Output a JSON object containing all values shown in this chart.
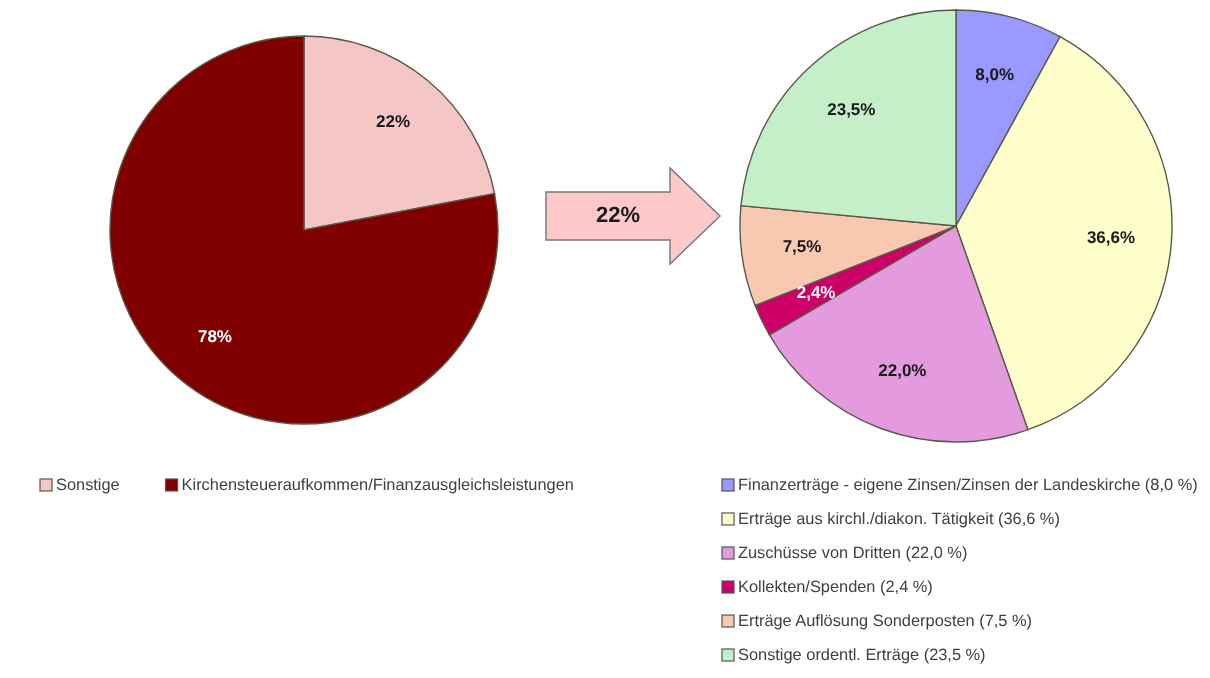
{
  "chart_data": [
    {
      "type": "pie",
      "categories": [
        "Sonstige",
        "Kirchensteueraufkommen/Finanzausgleichsleistungen"
      ],
      "values": [
        22,
        78
      ],
      "colors": [
        "#f4c6c6",
        "#800000"
      ],
      "value_labels": [
        "22%",
        "78%"
      ],
      "legend": "bottom",
      "annotations": [
        "22%"
      ]
    },
    {
      "type": "pie",
      "categories": [
        "Finanzerträge - eigene Zinsen/Zinsen der Landeskirche  (8,0 %)",
        "Erträge aus kirchl./diakon. Tätigkeit (36,6 %)",
        "Zuschüsse von Dritten (22,0 %)",
        "Kollekten/Spenden (2,4 %)",
        "Erträge Auflösung Sonderposten (7,5 %)",
        "Sonstige ordentl. Erträge (23,5 %)"
      ],
      "values": [
        8.0,
        36.6,
        22.0,
        2.4,
        7.5,
        23.5
      ],
      "colors": [
        "#9999ff",
        "#ffffcc",
        "#e49ade",
        "#cc0066",
        "#f8c8b0",
        "#c4efc8"
      ],
      "value_labels": [
        "8,0%",
        "36,6%",
        "22,0%",
        "2,4%",
        "7,5%",
        "23,5%"
      ],
      "legend": "bottom"
    }
  ]
}
